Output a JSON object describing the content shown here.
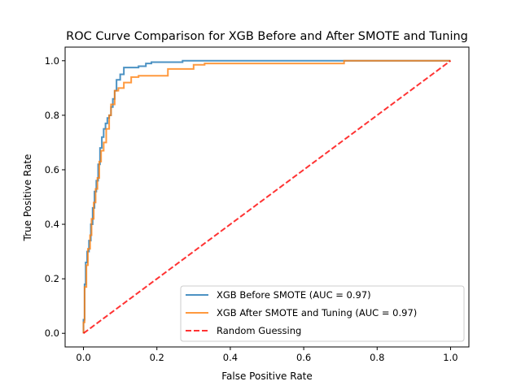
{
  "chart_data": {
    "type": "line",
    "title": "ROC Curve Comparison for XGB Before and After SMOTE and Tuning",
    "xlabel": "False Positive Rate",
    "ylabel": "True Positive Rate",
    "xlim": [
      -0.05,
      1.05
    ],
    "ylim": [
      -0.05,
      1.05
    ],
    "xticks": [
      0.0,
      0.2,
      0.4,
      0.6,
      0.8,
      1.0
    ],
    "yticks": [
      0.0,
      0.2,
      0.4,
      0.6,
      0.8,
      1.0
    ],
    "xtick_labels": [
      "0.0",
      "0.2",
      "0.4",
      "0.6",
      "0.8",
      "1.0"
    ],
    "ytick_labels": [
      "0.0",
      "0.2",
      "0.4",
      "0.6",
      "0.8",
      "1.0"
    ],
    "grid": false,
    "legend_position": "lower-right",
    "series": [
      {
        "name": "XGB Before SMOTE (AUC = 0.97)",
        "color": "#1f77b4",
        "style": "solid",
        "x": [
          0.0,
          0.0,
          0.003,
          0.003,
          0.006,
          0.006,
          0.01,
          0.01,
          0.015,
          0.015,
          0.02,
          0.02,
          0.025,
          0.025,
          0.03,
          0.03,
          0.035,
          0.035,
          0.04,
          0.04,
          0.045,
          0.045,
          0.05,
          0.05,
          0.055,
          0.055,
          0.06,
          0.06,
          0.065,
          0.065,
          0.07,
          0.07,
          0.075,
          0.075,
          0.08,
          0.08,
          0.085,
          0.085,
          0.09,
          0.09,
          0.1,
          0.1,
          0.11,
          0.11,
          0.15,
          0.15,
          0.17,
          0.17,
          0.185,
          0.185,
          0.27,
          0.27,
          0.72,
          0.72,
          1.0
        ],
        "y": [
          0.0,
          0.05,
          0.05,
          0.18,
          0.18,
          0.26,
          0.26,
          0.3,
          0.3,
          0.34,
          0.34,
          0.4,
          0.4,
          0.46,
          0.46,
          0.52,
          0.52,
          0.56,
          0.56,
          0.62,
          0.62,
          0.68,
          0.68,
          0.72,
          0.72,
          0.75,
          0.75,
          0.77,
          0.77,
          0.79,
          0.79,
          0.8,
          0.8,
          0.83,
          0.83,
          0.86,
          0.86,
          0.89,
          0.89,
          0.93,
          0.93,
          0.95,
          0.95,
          0.975,
          0.975,
          0.98,
          0.98,
          0.99,
          0.99,
          0.995,
          0.995,
          1.0,
          1.0,
          1.0,
          1.0
        ]
      },
      {
        "name": "XGB After SMOTE and Tuning (AUC = 0.97)",
        "color": "#ff7f0e",
        "style": "solid",
        "x": [
          0.0,
          0.0,
          0.003,
          0.003,
          0.008,
          0.008,
          0.012,
          0.012,
          0.018,
          0.018,
          0.022,
          0.022,
          0.028,
          0.028,
          0.033,
          0.033,
          0.038,
          0.038,
          0.043,
          0.043,
          0.048,
          0.048,
          0.055,
          0.055,
          0.062,
          0.062,
          0.07,
          0.07,
          0.075,
          0.075,
          0.085,
          0.085,
          0.095,
          0.095,
          0.11,
          0.11,
          0.13,
          0.13,
          0.15,
          0.15,
          0.23,
          0.23,
          0.3,
          0.3,
          0.33,
          0.33,
          0.71,
          0.71,
          1.0
        ],
        "y": [
          0.0,
          0.04,
          0.04,
          0.17,
          0.17,
          0.25,
          0.25,
          0.31,
          0.31,
          0.36,
          0.36,
          0.42,
          0.42,
          0.48,
          0.48,
          0.53,
          0.53,
          0.57,
          0.57,
          0.63,
          0.63,
          0.67,
          0.67,
          0.7,
          0.7,
          0.75,
          0.75,
          0.8,
          0.8,
          0.84,
          0.84,
          0.89,
          0.89,
          0.9,
          0.9,
          0.92,
          0.92,
          0.94,
          0.94,
          0.945,
          0.945,
          0.97,
          0.97,
          0.985,
          0.985,
          0.99,
          0.99,
          1.0,
          1.0
        ]
      },
      {
        "name": "Random Guessing",
        "color": "#ff0000",
        "style": "dashed",
        "x": [
          0.0,
          1.0
        ],
        "y": [
          0.0,
          1.0
        ]
      }
    ]
  }
}
